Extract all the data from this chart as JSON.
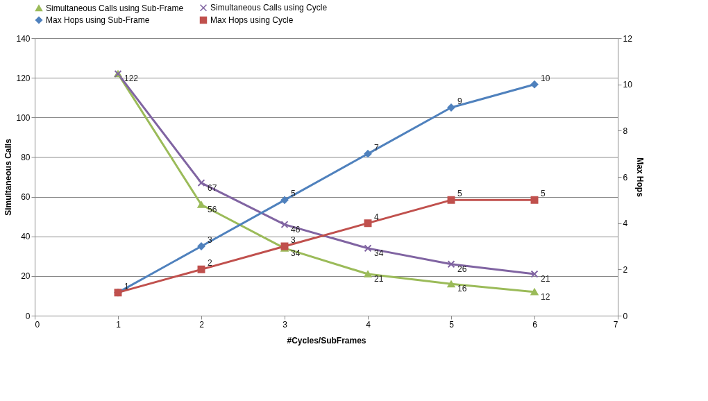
{
  "chart_data": {
    "type": "line",
    "xlabel": "#Cycles/SubFrames",
    "ylabel": "Simultaneous Calls",
    "y2label": "Max Hops",
    "x": [
      1,
      2,
      3,
      4,
      5,
      6
    ],
    "xlim": [
      0,
      7
    ],
    "xticks": [
      0,
      1,
      2,
      3,
      4,
      5,
      6,
      7
    ],
    "ylim": [
      0,
      140
    ],
    "yticks": [
      0,
      20,
      40,
      60,
      80,
      100,
      120,
      140
    ],
    "y2lim": [
      0,
      12
    ],
    "y2ticks": [
      0,
      2,
      4,
      6,
      8,
      10,
      12
    ],
    "grid": "y",
    "legend": "top",
    "series": [
      {
        "name": "Simultaneous Calls using Sub-Frame",
        "color": "#9bbb59",
        "marker": "triangle",
        "values": [
          122,
          56,
          34,
          21,
          16,
          12
        ],
        "value_labels": [
          null,
          "56",
          "34",
          "21",
          "16",
          "12"
        ]
      },
      {
        "name": "Simultaneous Calls using Cycle",
        "color": "#8064a2",
        "marker": "cross",
        "values": [
          122,
          67,
          46,
          34,
          26,
          21
        ],
        "value_labels": [
          "122",
          "67",
          "46",
          "34",
          "26",
          "21"
        ]
      },
      {
        "name": "Max Hops using Sub-Frame",
        "color": "#4f81bd",
        "marker": "diamond",
        "axis": "y2",
        "values": [
          1,
          3,
          5,
          7,
          9,
          10
        ],
        "value_labels": [
          null,
          "3",
          "5",
          "7",
          "9",
          "10"
        ]
      },
      {
        "name": "Max Hops using Cycle",
        "color": "#c0504d",
        "marker": "square",
        "axis": "y2",
        "values": [
          1,
          2,
          3,
          4,
          5,
          5
        ],
        "value_labels": [
          "1",
          "2",
          "3",
          "4",
          "5",
          "5"
        ]
      }
    ]
  }
}
